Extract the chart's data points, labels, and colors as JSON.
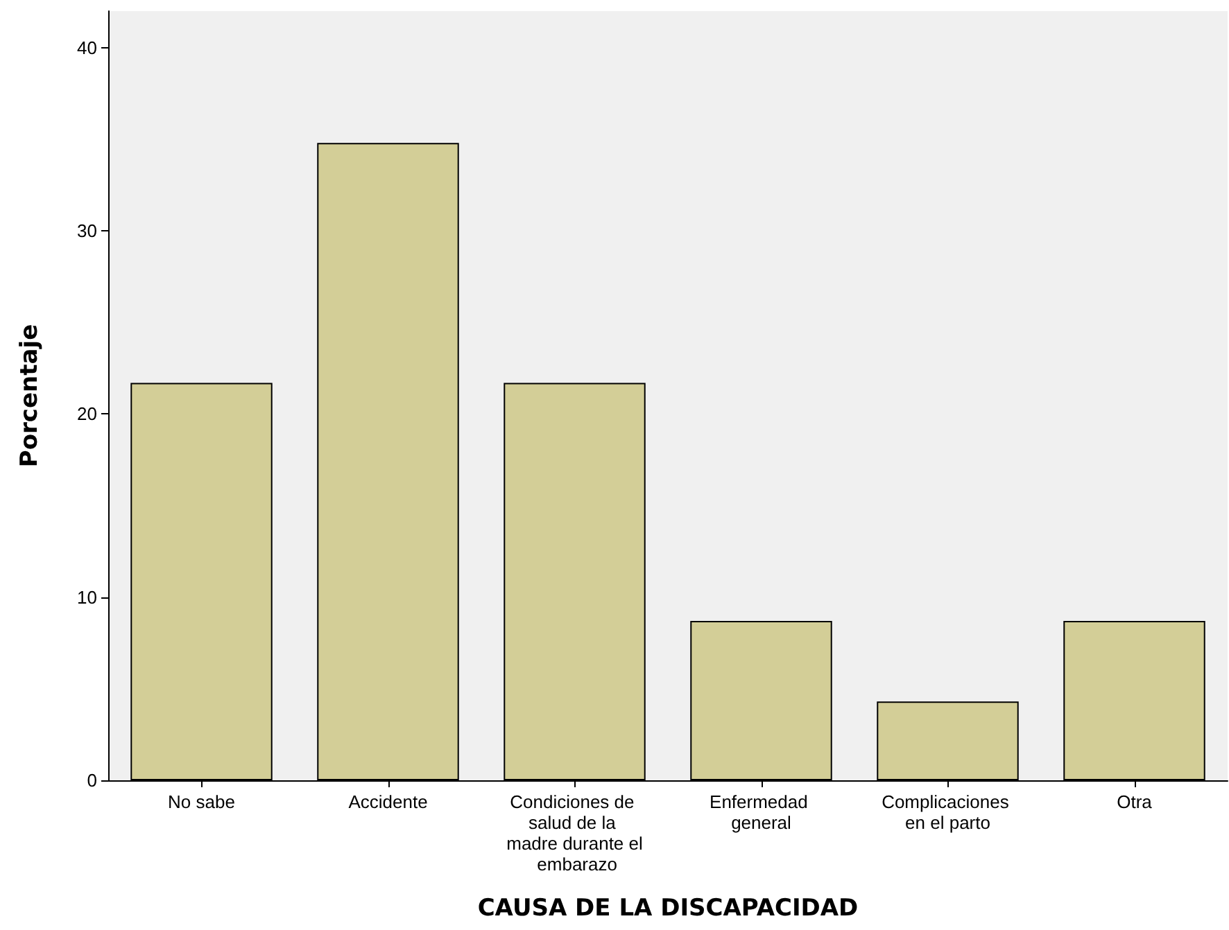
{
  "chart_data": {
    "type": "bar",
    "xlabel": "CAUSA DE LA DISCAPACIDAD",
    "ylabel": "Porcentaje",
    "categories": [
      "No sabe",
      "Accidente",
      "Condiciones de salud de la madre durante el embarazo",
      "Enfermedad general",
      "Complicaciones en el parto",
      "Otra"
    ],
    "values": [
      21.7,
      34.8,
      21.7,
      8.7,
      4.3,
      8.7
    ],
    "color": "#d3ce97",
    "ylim": [
      0,
      42
    ],
    "yticks": [
      0,
      10,
      20,
      30,
      40
    ],
    "grid": false
  }
}
